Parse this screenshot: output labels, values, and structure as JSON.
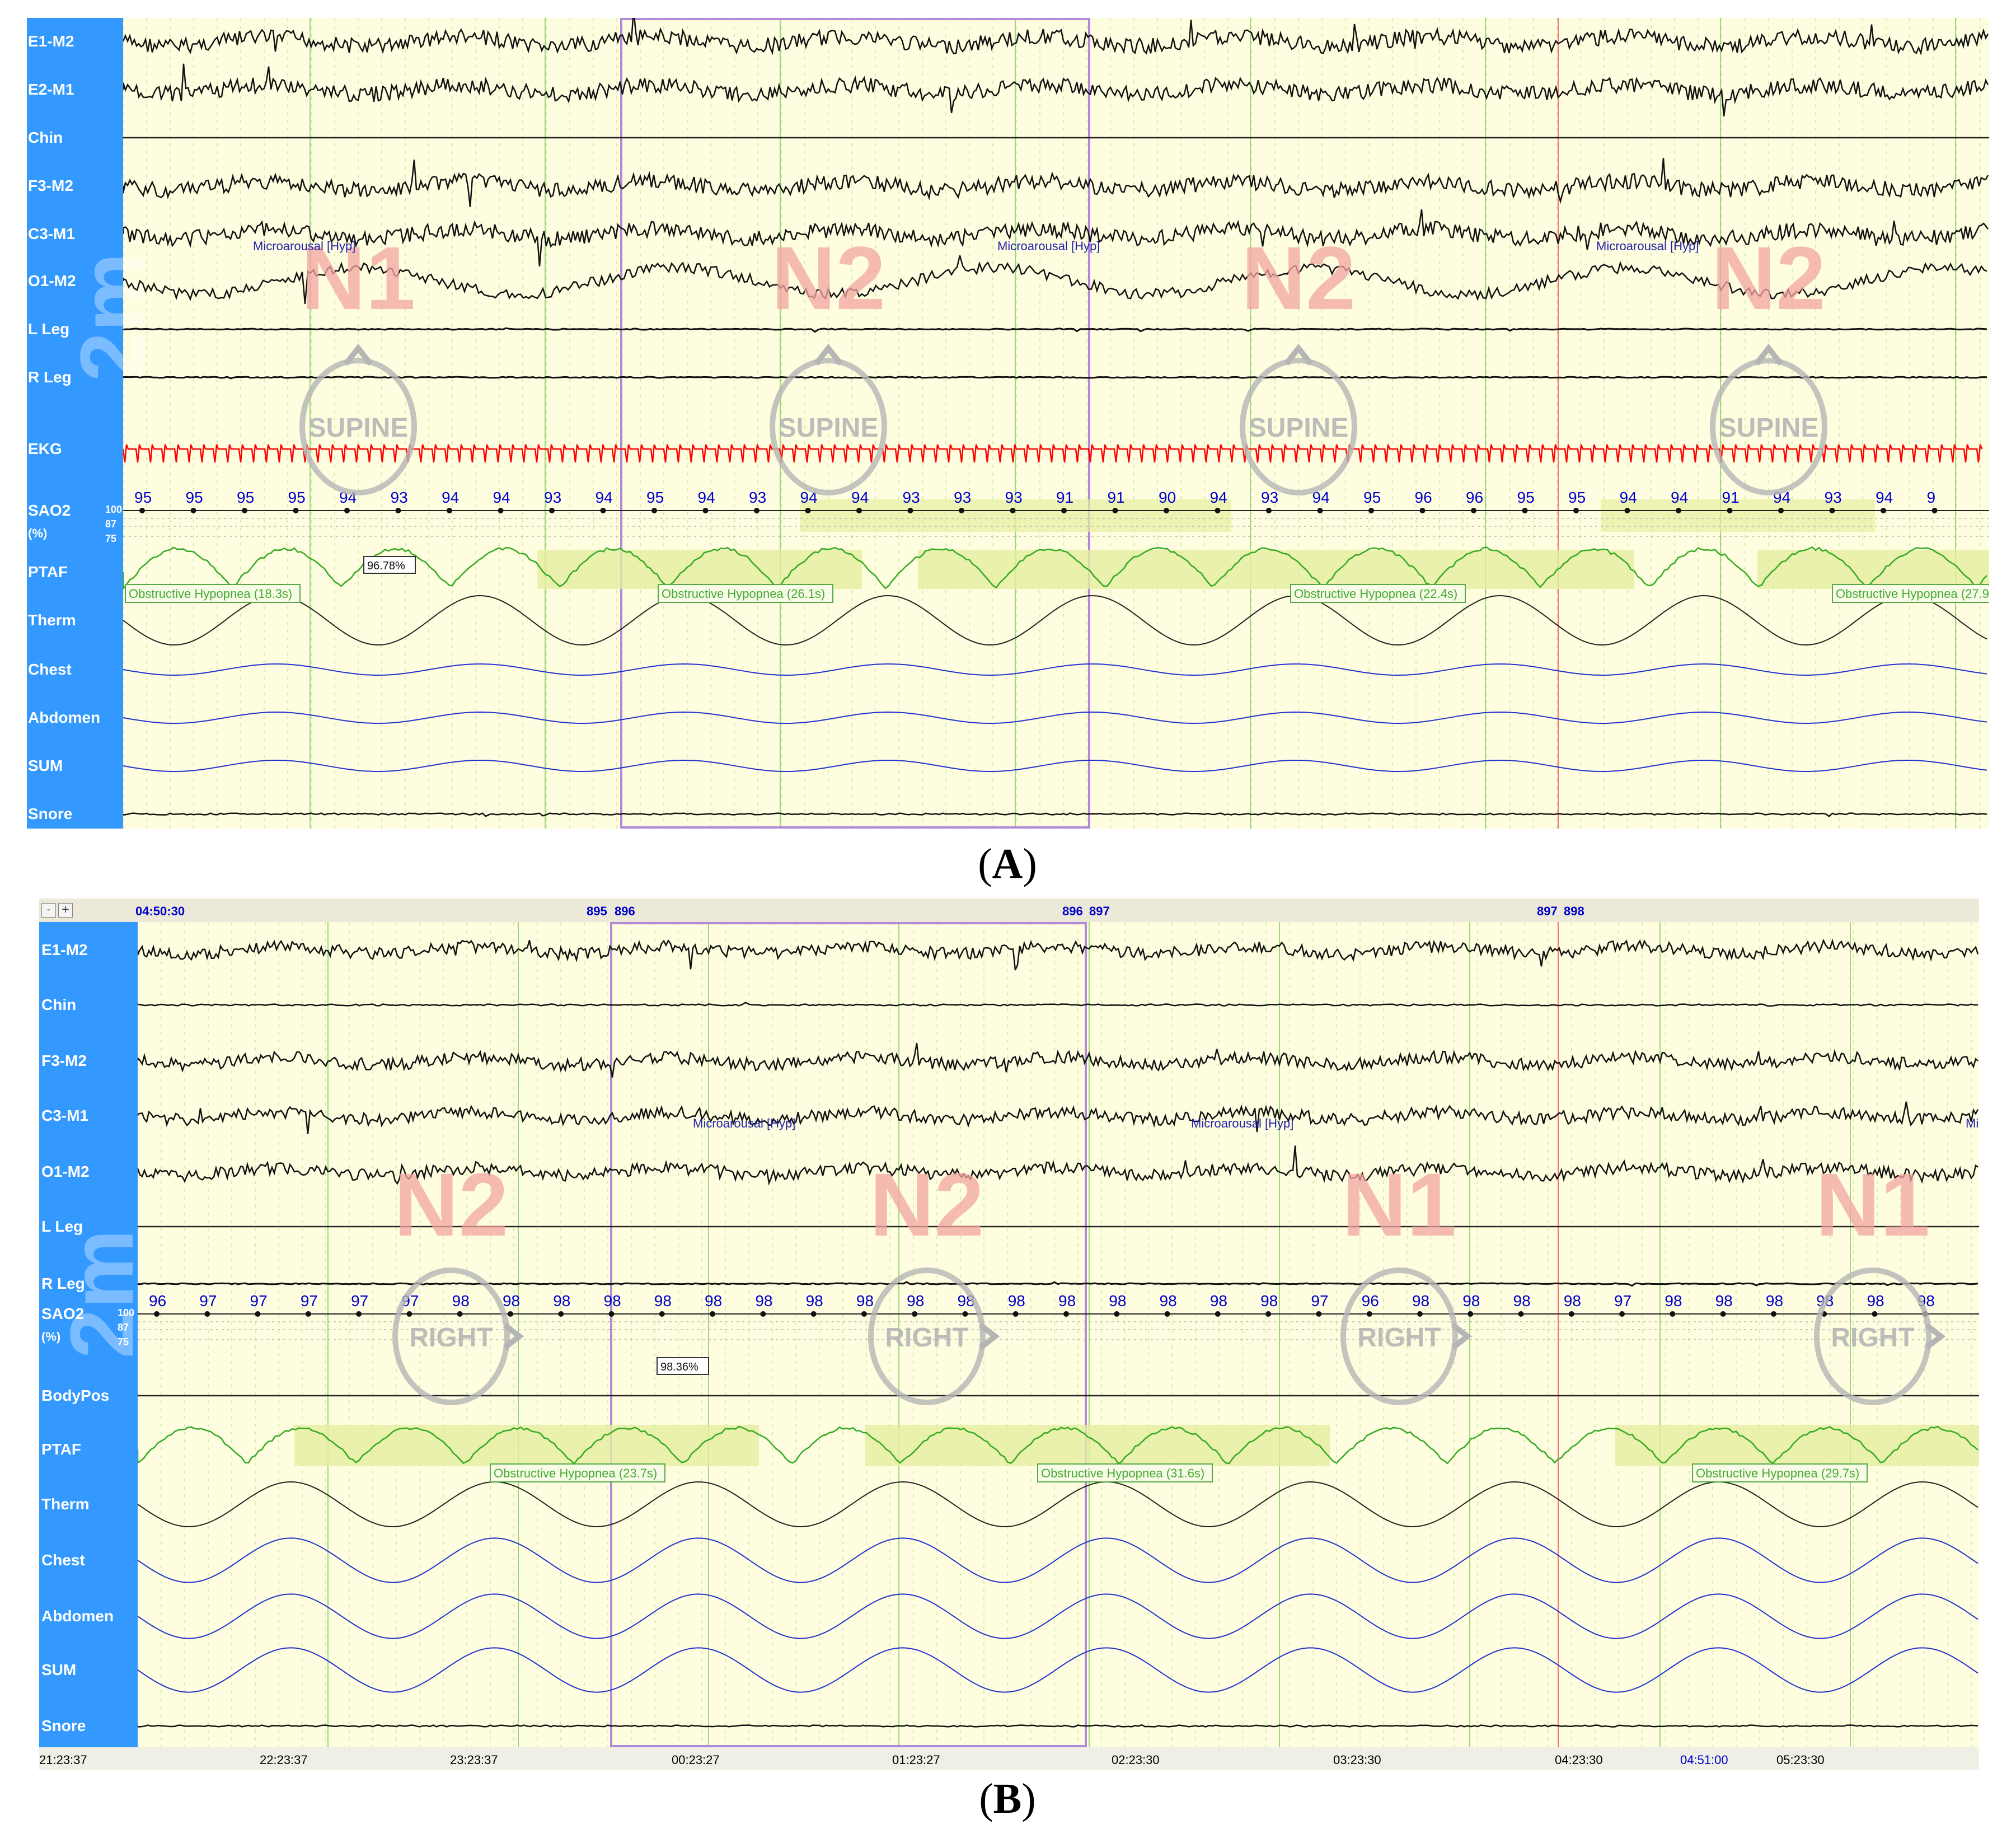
{
  "panel_a": {
    "caption": "A",
    "channels": [
      "E1-M2",
      "E2-M1",
      "Chin",
      "F3-M2",
      "C3-M1",
      "O1-M2",
      "L Leg",
      "R Leg",
      "EKG",
      "SAO2",
      "PTAF",
      "Therm",
      "Chest",
      "Abdomen",
      "SUM",
      "Snore"
    ],
    "sao2_unit": "(%)",
    "sao2_scale": [
      "100",
      "87",
      "75"
    ],
    "scale_label": "2m",
    "stages": [
      "N1",
      "N2",
      "N2",
      "N2"
    ],
    "positions": [
      "SUPINE",
      "SUPINE",
      "SUPINE",
      "SUPINE"
    ],
    "microarousals": [
      "Microarousal [Hyp]",
      "Microarousal [Hyp]",
      "Microarousal [Hyp]"
    ],
    "hypopneas": [
      "Obstructive Hypopnea (18.3s)",
      "Obstructive Hypopnea (26.1s)",
      "Obstructive Hypopnea (22.4s)",
      "Obstructive Hypopnea (27.9s)"
    ],
    "cursor_value": "96.78%",
    "sao2_values": [
      "95",
      "95",
      "95",
      "95",
      "94",
      "93",
      "94",
      "94",
      "93",
      "94",
      "95",
      "94",
      "93",
      "94",
      "94",
      "93",
      "93",
      "93",
      "91",
      "91",
      "90",
      "94",
      "93",
      "94",
      "95",
      "96",
      "96",
      "95",
      "95",
      "94",
      "94",
      "91",
      "94",
      "93",
      "94",
      "9"
    ]
  },
  "panel_b": {
    "caption": "B",
    "toolbar": {
      "minus": "-",
      "plus": "+",
      "start_time": "04:50:30",
      "epoch_marks": [
        "895",
        "896",
        "896",
        "897",
        "897",
        "898"
      ]
    },
    "channels": [
      "E1-M2",
      "Chin",
      "F3-M2",
      "C3-M1",
      "O1-M2",
      "L Leg",
      "R Leg",
      "SAO2",
      "BodyPos",
      "PTAF",
      "Therm",
      "Chest",
      "Abdomen",
      "SUM",
      "Snore"
    ],
    "sao2_unit": "(%)",
    "sao2_scale": [
      "100",
      "87",
      "75"
    ],
    "scale_label": "2m",
    "stages": [
      "N2",
      "N2",
      "N1",
      "N1"
    ],
    "positions": [
      "RIGHT",
      "RIGHT",
      "RIGHT",
      "RIGHT"
    ],
    "microarousals": [
      "Microarousal [Hyp]",
      "Microarousal [Hyp]",
      "Microaro"
    ],
    "hypopneas": [
      "Obstructive Hypopnea (23.7s)",
      "Obstructive Hypopnea (31.6s)",
      "Obstructive Hypopnea (29.7s)"
    ],
    "cursor_value": "98.36%",
    "sao2_values": [
      "96",
      "97",
      "97",
      "97",
      "97",
      "97",
      "98",
      "98",
      "98",
      "98",
      "98",
      "98",
      "98",
      "98",
      "98",
      "98",
      "98",
      "98",
      "98",
      "98",
      "98",
      "98",
      "98",
      "97",
      "96",
      "98",
      "98",
      "98",
      "98",
      "97",
      "98",
      "98",
      "98",
      "98",
      "98",
      "98"
    ],
    "time_ticks": [
      "21:23:37",
      "22:23:37",
      "23:23:37",
      "00:23:27",
      "01:23:27",
      "02:23:30",
      "03:23:30",
      "04:23:30",
      "04:51:00",
      "05:23:30"
    ]
  },
  "colors": {
    "background": "#fffde0",
    "sidebar": "#3399ff",
    "eeg": "#111111",
    "ekg": "#ff0000",
    "ptaf": "#33aa22",
    "resp": "#2233cc",
    "sao2_text": "#0000cc",
    "stage": "#f4a6a0",
    "position": "#b5b5b5",
    "hypopnea_band": "#e5eea0"
  }
}
